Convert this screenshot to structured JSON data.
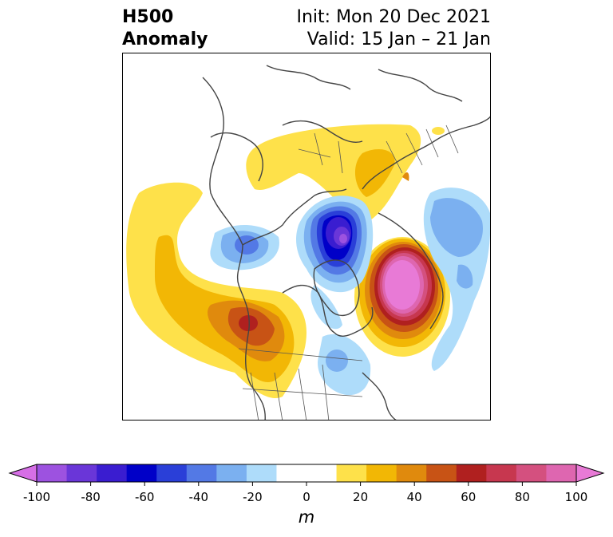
{
  "header": {
    "title_line1": "H500",
    "title_line2": "Anomaly",
    "init_text": "Init: Mon 20 Dec 2021",
    "valid_text": "Valid: 15 Jan – 21 Jan"
  },
  "map": {
    "projection": "polar stereographic (North Pole)",
    "features": [
      {
        "name": "coastlines",
        "color": "#444444"
      },
      {
        "name": "country-borders",
        "color": "#555555"
      }
    ],
    "anomaly_centers": [
      {
        "region": "western North America",
        "sign": "positive",
        "peak_m": 60
      },
      {
        "region": "Greenland / Baffin Bay",
        "sign": "negative",
        "peak_m": -80
      },
      {
        "region": "North Atlantic",
        "sign": "positive",
        "peak_m": 100
      },
      {
        "region": "Eurasian Arctic",
        "sign": "positive",
        "peak_m": 20
      },
      {
        "region": "central North Pacific",
        "sign": "negative",
        "peak_m": -40
      },
      {
        "region": "eastern North America",
        "sign": "negative",
        "peak_m": -30
      },
      {
        "region": "Europe / Scandinavia",
        "sign": "negative",
        "peak_m": -30
      }
    ]
  },
  "colorbar": {
    "unit": "m",
    "min": -100,
    "max": 100,
    "step": 10,
    "extend": "both",
    "tick_labels": [
      "-100",
      "-80",
      "-60",
      "-40",
      "-20",
      "0",
      "20",
      "40",
      "60",
      "80",
      "100"
    ],
    "colors": [
      "#d66fe6",
      "#9d52e0",
      "#6a36d8",
      "#3a1dd0",
      "#0000c8",
      "#2a3fd8",
      "#5379e5",
      "#7bb0f0",
      "#aedcfa",
      "#ffffff",
      "#ffffff",
      "#fee14a",
      "#f2b705",
      "#e08a0d",
      "#c85315",
      "#b0201f",
      "#c7374f",
      "#d4507f",
      "#de66b0",
      "#e87ad6"
    ]
  }
}
